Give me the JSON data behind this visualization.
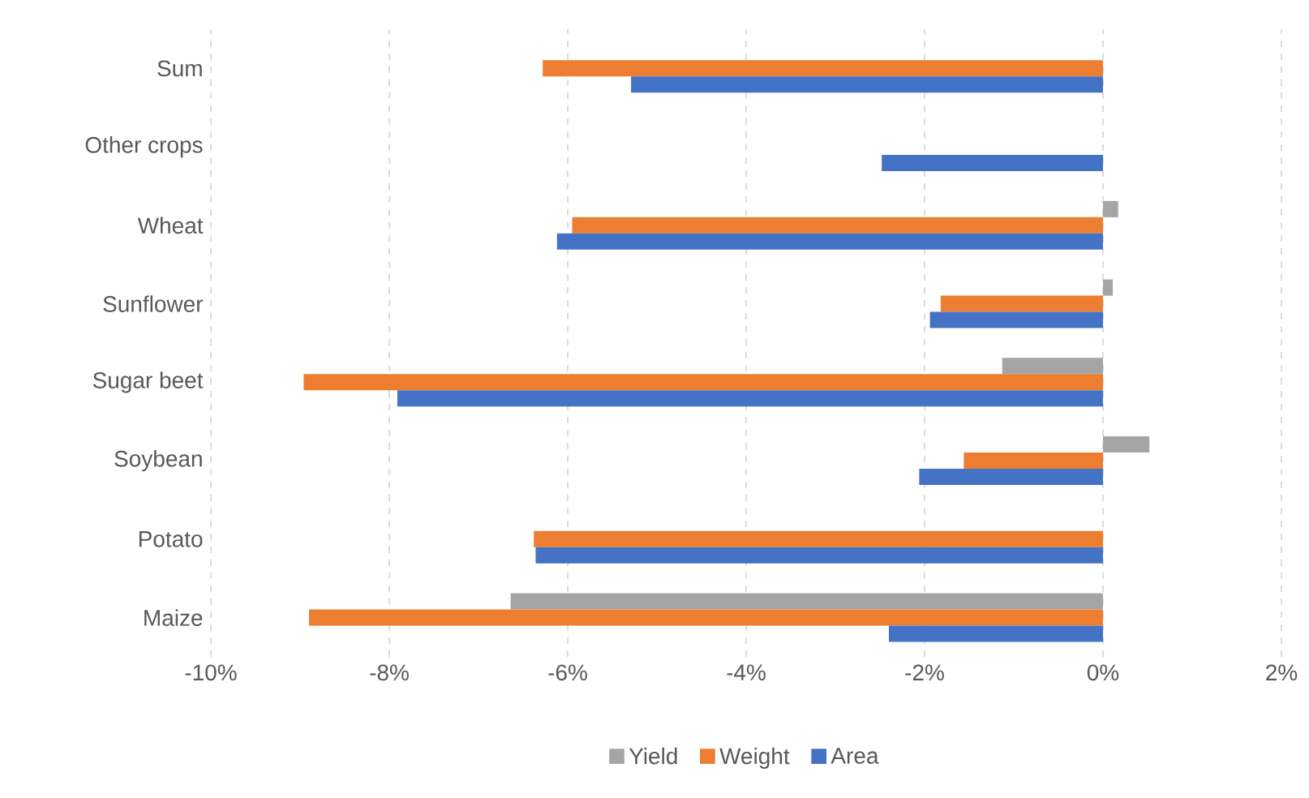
{
  "chart_data": {
    "type": "bar",
    "orientation": "horizontal",
    "categories": [
      "Sum",
      "Other crops",
      "Wheat",
      "Sunflower",
      "Sugar beet",
      "Soybean",
      "Potato",
      "Maize"
    ],
    "series": [
      {
        "name": "Yield",
        "color": "#a5a5a5",
        "values": [
          null,
          null,
          0.17,
          0.11,
          -1.13,
          0.52,
          null,
          -6.64
        ]
      },
      {
        "name": "Weight",
        "color": "#ed7d31",
        "values": [
          -6.28,
          null,
          -5.95,
          -1.82,
          -8.96,
          -1.56,
          -6.38,
          -8.9
        ]
      },
      {
        "name": "Area",
        "color": "#4472c4",
        "values": [
          -5.29,
          -2.48,
          -6.12,
          -1.94,
          -7.91,
          -2.06,
          -6.36,
          -2.4
        ]
      }
    ],
    "xlim": [
      -10,
      2
    ],
    "xticks": [
      {
        "value": -10,
        "label": "-10%"
      },
      {
        "value": -8,
        "label": "-8%"
      },
      {
        "value": -6,
        "label": "-6%"
      },
      {
        "value": -4,
        "label": "-4%"
      },
      {
        "value": -2,
        "label": "-2%"
      },
      {
        "value": 0,
        "label": "0%"
      },
      {
        "value": 2,
        "label": "2%"
      }
    ],
    "grid": "x",
    "legend": "bottom"
  }
}
